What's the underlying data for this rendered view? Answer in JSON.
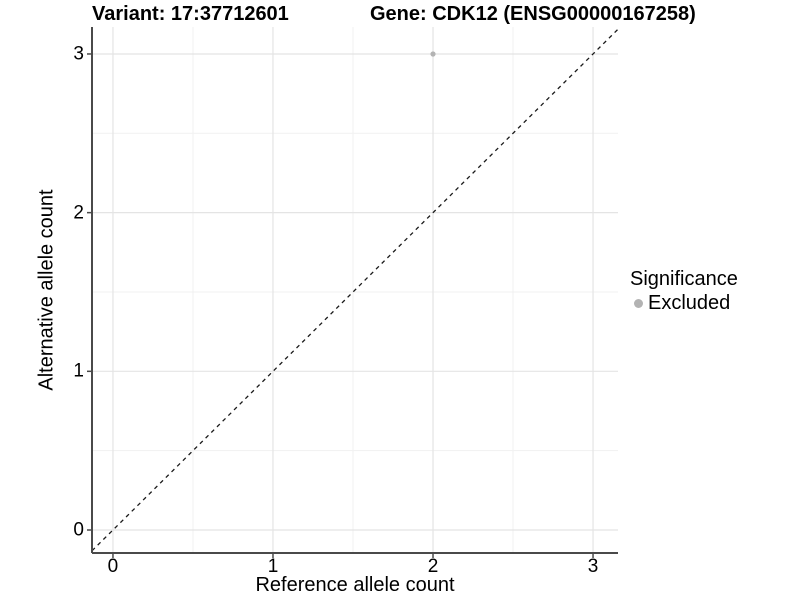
{
  "chart_data": {
    "type": "scatter",
    "titles": {
      "left": "Variant: 17:37712601",
      "right": "Gene: CDK12 (ENSG00000167258)"
    },
    "xlabel": "Reference allele count",
    "ylabel": "Alternative allele count",
    "x_ticks": [
      0,
      1,
      2,
      3
    ],
    "y_ticks": [
      0,
      1,
      2,
      3
    ],
    "xlim": [
      -0.131,
      3.156
    ],
    "ylim": [
      -0.145,
      3.17
    ],
    "grid": {
      "major": true,
      "minor": true,
      "major_color": "#e4e4e4",
      "minor_color": "#f1f1f1"
    },
    "axis_line_color": "#4a4a4a",
    "tick_mark_color": "#4a4a4a",
    "identity_line": {
      "style": "dashed",
      "color": "#1a1a1a",
      "equation": "y = x"
    },
    "series": [
      {
        "name": "Excluded",
        "color": "#b3b3b3",
        "points": [
          {
            "x": 2,
            "y": 3
          }
        ]
      }
    ],
    "legend": {
      "title": "Significance",
      "position": "right",
      "entries": [
        {
          "label": "Excluded",
          "color": "#b3b3b3",
          "marker": "circle"
        }
      ]
    }
  }
}
